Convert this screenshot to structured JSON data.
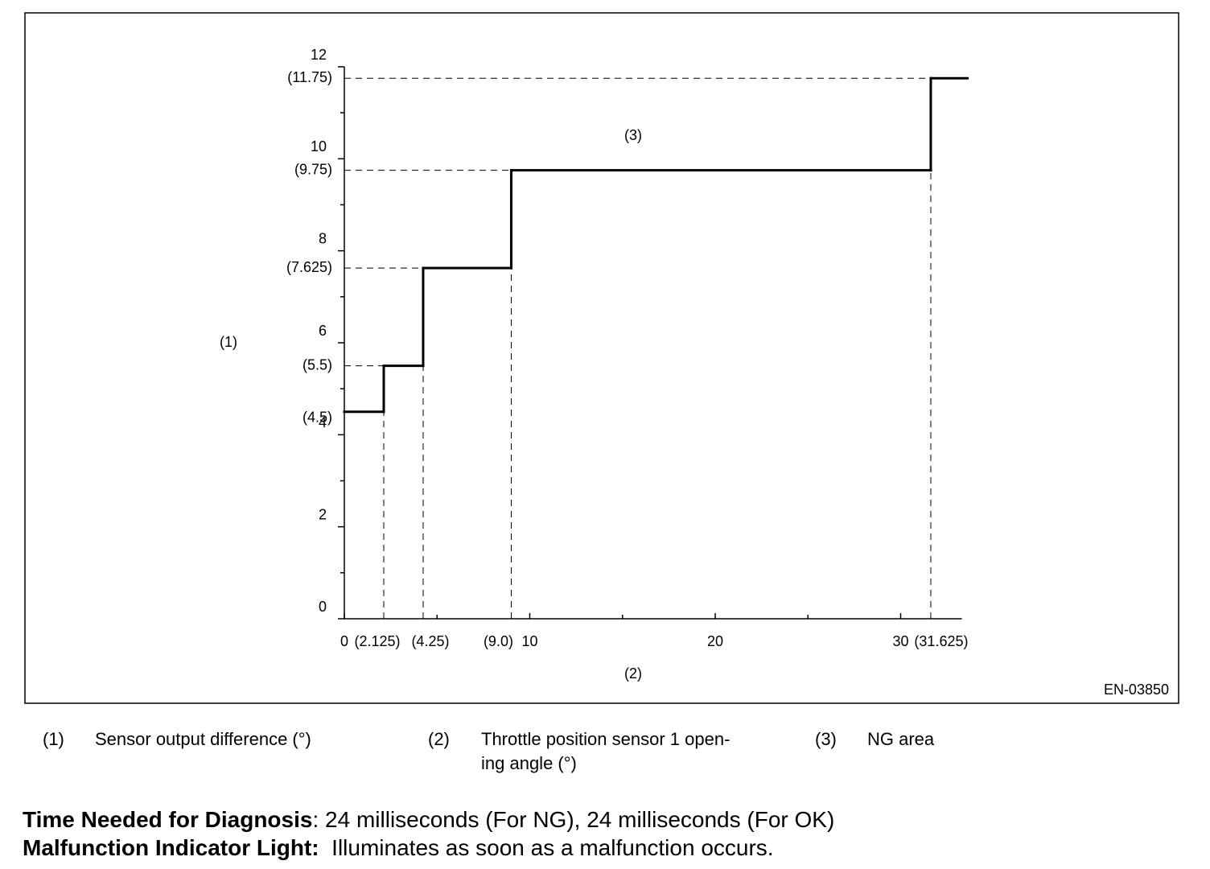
{
  "chart_data": {
    "type": "step",
    "x": [
      0,
      2.125,
      4.25,
      9.0,
      31.625,
      33.6
    ],
    "values": [
      4.5,
      5.5,
      7.625,
      9.75,
      11.75,
      11.75
    ],
    "color": "#000000",
    "xlim": [
      0,
      33.3
    ],
    "ylim": [
      0,
      12
    ],
    "xticks": [
      0,
      10,
      20,
      30
    ],
    "xminor_ticks": [
      5,
      15,
      25
    ],
    "yticks": [
      0,
      2,
      4,
      6,
      8,
      10,
      12
    ],
    "yminor_ticks": [
      1,
      3,
      5,
      7,
      9,
      11
    ],
    "x_markers": [
      {
        "value": 2.125,
        "label": "(2.125)"
      },
      {
        "value": 4.25,
        "label": "(4.25)"
      },
      {
        "value": 9.0,
        "label": "(9.0)"
      },
      {
        "value": 31.625,
        "label": "(31.625)"
      }
    ],
    "y_markers": [
      {
        "value": 11.75,
        "label": "(11.75)"
      },
      {
        "value": 9.75,
        "label": "(9.75)"
      },
      {
        "value": 7.625,
        "label": "(7.625)"
      },
      {
        "value": 5.5,
        "label": "(5.5)"
      },
      {
        "value": 4.5,
        "label": "(4.5)"
      }
    ],
    "y_label": "(1)",
    "x_label": "(2)",
    "annotation": "(3)",
    "figure_id": "EN-03850"
  },
  "notes": [
    {
      "key": "(1)",
      "text": [
        "Sensor output difference (°)"
      ]
    },
    {
      "key": "(2)",
      "text": [
        "Throttle position sensor 1 open-",
        "ing angle (°)"
      ]
    },
    {
      "key": "(3)",
      "text": [
        "NG area"
      ]
    }
  ],
  "footer": [
    {
      "label": "Time Needed for Diagnosis",
      "text": ": 24 milliseconds (For NG), 24 milliseconds (For OK)"
    },
    {
      "label": "Malfunction Indicator Light:",
      "text": "  Illuminates as soon as a malfunction occurs."
    }
  ]
}
